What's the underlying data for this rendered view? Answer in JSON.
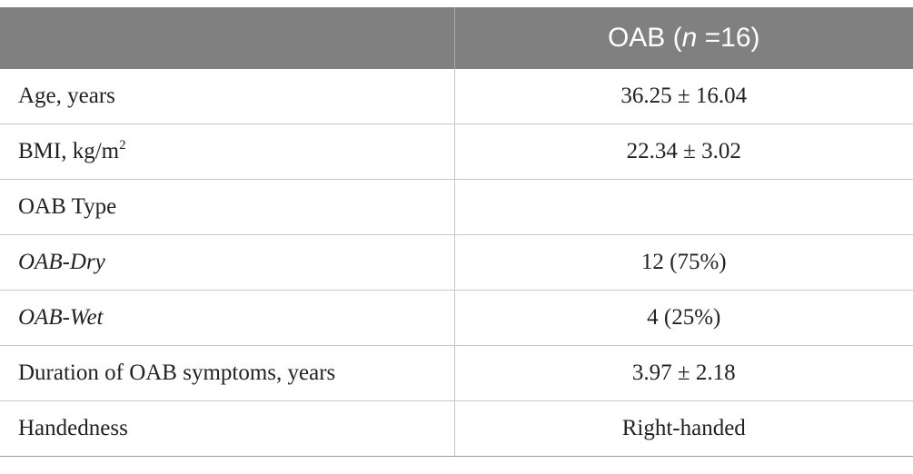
{
  "table": {
    "header": {
      "text": "OAB (",
      "italic": "n",
      "suffix": " =16)"
    },
    "rows": [
      {
        "label": "Age, years",
        "value": "36.25 ± 16.04"
      },
      {
        "label": "BMI, kg/m",
        "label_sup": "2",
        "value": "22.34 ± 3.02"
      },
      {
        "label": "OAB Type"
      },
      {
        "label": "OAB-Dry",
        "italic": true,
        "value": "12 (75%)"
      },
      {
        "label": "OAB-Wet",
        "italic": true,
        "value": "4 (25%)"
      },
      {
        "label": "Duration of OAB symptoms, years",
        "value": "3.97 ± 2.18"
      },
      {
        "label": "Handedness",
        "value": "Right-handed"
      }
    ]
  }
}
